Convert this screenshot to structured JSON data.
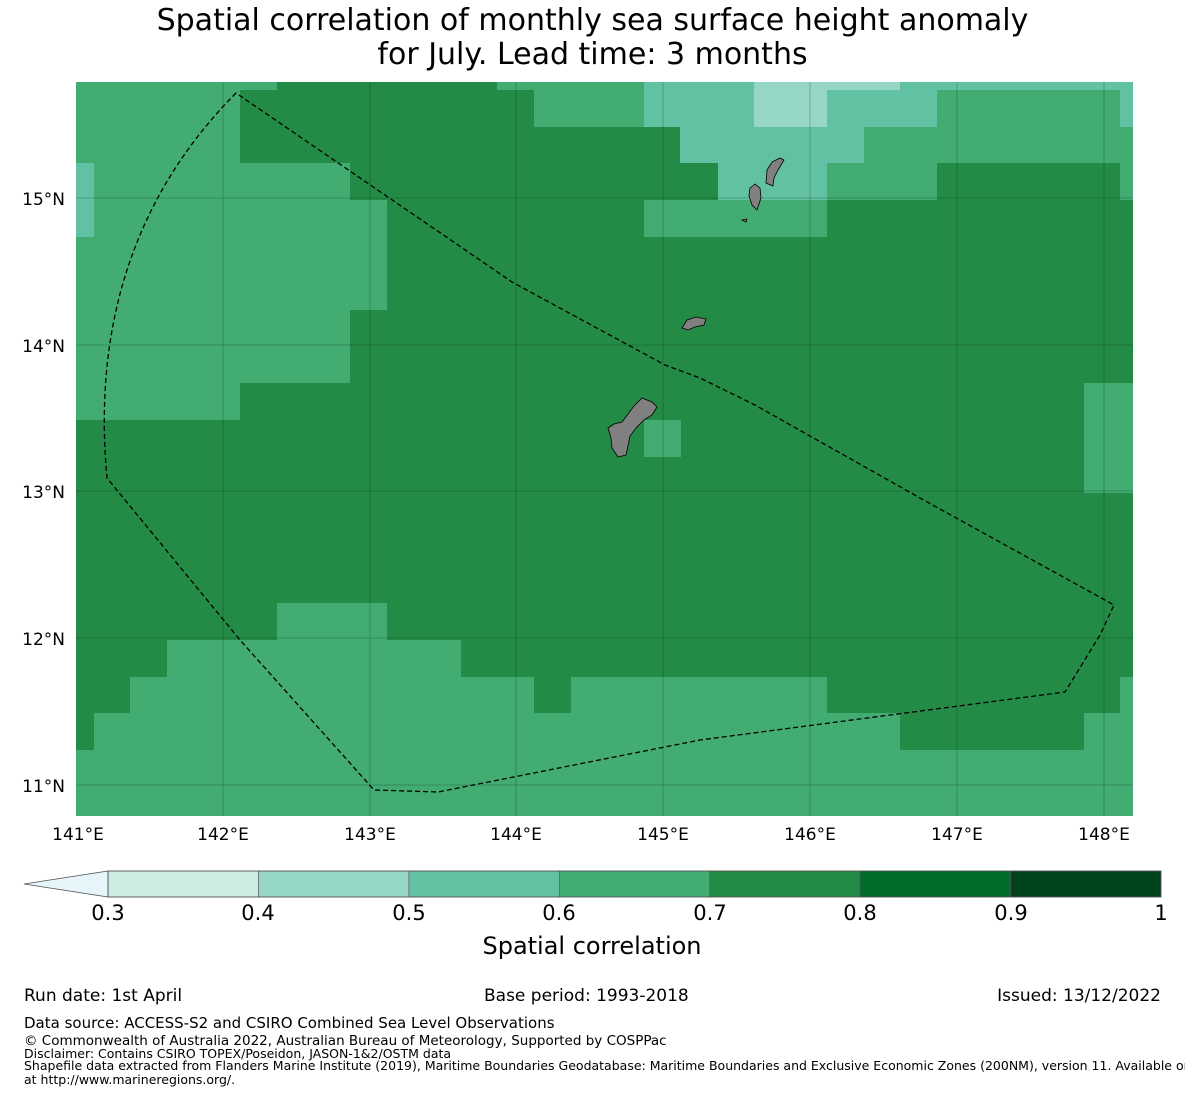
{
  "title_line1": "Spatial correlation of monthly sea surface height anomaly",
  "title_line2": "for July. Lead time: 3 months",
  "map": {
    "lon_ticks": [
      "141°E",
      "142°E",
      "143°E",
      "144°E",
      "145°E",
      "146°E",
      "147°E",
      "148°E"
    ],
    "lat_ticks": [
      "15°N",
      "14°N",
      "13°N",
      "12°N",
      "11°N"
    ],
    "lon_range": [
      141.0,
      148.2
    ],
    "lat_range": [
      10.8,
      15.8
    ],
    "land_color": "#808080",
    "boundary_style": "dashed"
  },
  "colorbar": {
    "ticks": [
      "0.3",
      "0.4",
      "0.5",
      "0.6",
      "0.7",
      "0.8",
      "0.9",
      "1"
    ],
    "colors": [
      "#cdece4",
      "#96d6c5",
      "#62c1a2",
      "#42ac73",
      "#238b45",
      "#006d2c",
      "#00441b"
    ],
    "under_color": "#e5f5f9",
    "label": "Spatial correlation"
  },
  "footer": {
    "run_date": "Run date: 1st April",
    "base_period": "Base period: 1993-2018",
    "issued": "Issued: 13/12/2022",
    "data_source": "Data source: ACCESS-S2 and CSIRO Combined Sea Level Observations",
    "copyright": "© Commonwealth of Australia 2022, Australian Bureau of Meteorology, Supported by COSPPac",
    "disclaimer": "Disclaimer: Contains CSIRO TOPEX/Poseidon, JASON-1&2/OSTM data",
    "shapefile_1": "Shapefile data extracted from Flanders Marine Institute (2019), Maritime Boundaries Geodatabase: Maritime Boundaries and Exclusive Economic Zones (200NM), version 11. Available online",
    "shapefile_2": "at http://www.marineregions.org/."
  }
}
